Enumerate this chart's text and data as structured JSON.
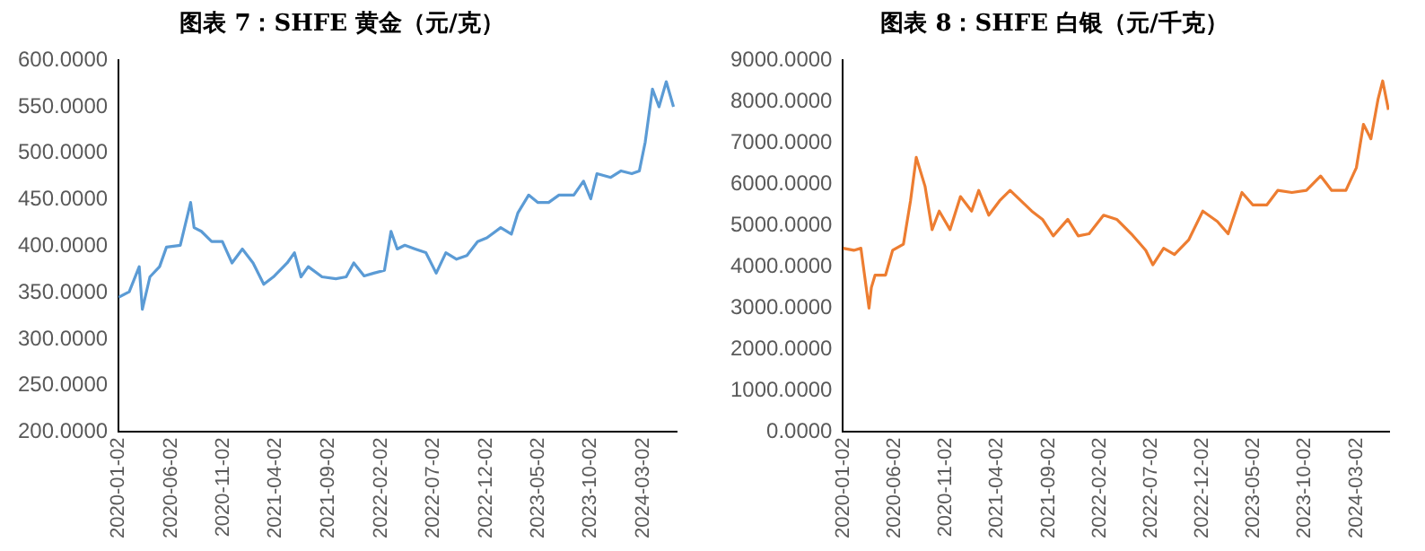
{
  "chart_data": [
    {
      "type": "line",
      "title": "图表 7：SHFE 黄金（元/克）",
      "grid": false,
      "legend": false,
      "marker": "none",
      "line_style": "solid",
      "xlim": [
        "2020-01-02",
        "2024-06-07"
      ],
      "xticks": [
        "2020-01-02",
        "2020-06-02",
        "2020-11-02",
        "2021-04-02",
        "2021-09-02",
        "2022-02-02",
        "2022-07-02",
        "2022-12-02",
        "2023-05-02",
        "2023-10-02",
        "2024-03-02"
      ],
      "ylim": [
        200,
        600
      ],
      "yticks": [
        {
          "value": 200,
          "label": "200.0000"
        },
        {
          "value": 250,
          "label": "250.0000"
        },
        {
          "value": 300,
          "label": "300.0000"
        },
        {
          "value": 350,
          "label": "350.0000"
        },
        {
          "value": 400,
          "label": "400.0000"
        },
        {
          "value": 450,
          "label": "450.0000"
        },
        {
          "value": 500,
          "label": "500.0000"
        },
        {
          "value": 550,
          "label": "550.0000"
        },
        {
          "value": 600,
          "label": "600.0000"
        }
      ],
      "x": [
        "2020-01-02",
        "2020-02-02",
        "2020-03-02",
        "2020-03-11",
        "2020-04-02",
        "2020-04-30",
        "2020-05-20",
        "2020-06-29",
        "2020-07-29",
        "2020-08-08",
        "2020-08-29",
        "2020-09-28",
        "2020-10-29",
        "2020-11-26",
        "2020-12-26",
        "2021-01-26",
        "2021-02-26",
        "2021-03-26",
        "2021-05-05",
        "2021-05-26",
        "2021-06-14",
        "2021-07-05",
        "2021-08-14",
        "2021-09-23",
        "2021-10-23",
        "2021-11-14",
        "2021-12-14",
        "2022-01-11",
        "2022-02-11",
        "2022-03-02",
        "2022-03-20",
        "2022-04-11",
        "2022-05-11",
        "2022-06-11",
        "2022-07-11",
        "2022-08-08",
        "2022-09-08",
        "2022-10-08",
        "2022-11-08",
        "2022-12-05",
        "2023-01-14",
        "2023-02-14",
        "2023-03-05",
        "2023-04-05",
        "2023-05-02",
        "2023-06-02",
        "2023-07-02",
        "2023-08-14",
        "2023-09-11",
        "2023-10-02",
        "2023-10-20",
        "2023-11-29",
        "2023-12-29",
        "2024-01-29",
        "2024-02-20",
        "2024-03-08",
        "2024-03-29",
        "2024-04-17",
        "2024-05-08",
        "2024-05-29"
      ],
      "series": [
        {
          "color": "#5b9bd5",
          "values": [
            345,
            351,
            378,
            332,
            367,
            378,
            399,
            401,
            447,
            420,
            416,
            405,
            405,
            382,
            397,
            382,
            359,
            367,
            382,
            393,
            367,
            378,
            367,
            365,
            367,
            382,
            368,
            371,
            374,
            416,
            397,
            401,
            397,
            393,
            371,
            393,
            386,
            390,
            405,
            409,
            420,
            413,
            436,
            455,
            447,
            447,
            455,
            455,
            470,
            451,
            478,
            474,
            481,
            478,
            481,
            512,
            569,
            550,
            577,
            550
          ]
        }
      ]
    },
    {
      "type": "line",
      "title": "图表 8：SHFE 白银（元/千克）",
      "grid": false,
      "legend": false,
      "marker": "none",
      "line_style": "solid",
      "xlim": [
        "2020-01-02",
        "2024-06-07"
      ],
      "xticks": [
        "2020-01-02",
        "2020-06-02",
        "2020-11-02",
        "2021-04-02",
        "2021-09-02",
        "2022-02-02",
        "2022-07-02",
        "2022-12-02",
        "2023-05-02",
        "2023-10-02",
        "2024-03-02"
      ],
      "ylim": [
        0,
        9000
      ],
      "yticks": [
        {
          "value": 0,
          "label": "0.0000"
        },
        {
          "value": 1000,
          "label": "1000.0000"
        },
        {
          "value": 2000,
          "label": "2000.0000"
        },
        {
          "value": 3000,
          "label": "3000.0000"
        },
        {
          "value": 4000,
          "label": "4000.0000"
        },
        {
          "value": 5000,
          "label": "5000.0000"
        },
        {
          "value": 6000,
          "label": "6000.0000"
        },
        {
          "value": 7000,
          "label": "7000.0000"
        },
        {
          "value": 8000,
          "label": "8000.0000"
        },
        {
          "value": 9000,
          "label": "9000.0000"
        }
      ],
      "x": [
        "2020-01-02",
        "2020-02-03",
        "2020-02-24",
        "2020-03-19",
        "2020-03-26",
        "2020-04-06",
        "2020-05-07",
        "2020-05-28",
        "2020-06-29",
        "2020-07-20",
        "2020-08-06",
        "2020-09-01",
        "2020-09-22",
        "2020-10-13",
        "2020-11-14",
        "2020-12-15",
        "2021-01-17",
        "2021-02-07",
        "2021-03-09",
        "2021-04-10",
        "2021-05-11",
        "2021-06-12",
        "2021-07-14",
        "2021-08-15",
        "2021-09-16",
        "2021-10-29",
        "2021-11-29",
        "2021-12-31",
        "2022-02-12",
        "2022-03-23",
        "2022-05-05",
        "2022-06-17",
        "2022-07-08",
        "2022-08-09",
        "2022-09-10",
        "2022-10-22",
        "2022-12-03",
        "2023-01-15",
        "2023-02-16",
        "2023-03-29",
        "2023-04-30",
        "2023-06-11",
        "2023-07-13",
        "2023-08-24",
        "2023-10-06",
        "2023-11-17",
        "2023-12-20",
        "2024-01-31",
        "2024-03-02",
        "2024-03-23",
        "2024-04-14",
        "2024-05-05",
        "2024-05-19",
        "2024-06-05"
      ],
      "series": [
        {
          "color": "#ed7d31",
          "values": [
            4450,
            4400,
            4450,
            3000,
            3500,
            3800,
            3800,
            4400,
            4550,
            5600,
            6650,
            5950,
            4900,
            5350,
            4900,
            5700,
            5350,
            5850,
            5250,
            5600,
            5850,
            5600,
            5350,
            5150,
            4750,
            5150,
            4750,
            4800,
            5250,
            5150,
            4800,
            4400,
            4050,
            4450,
            4300,
            4650,
            5350,
            5100,
            4800,
            5800,
            5500,
            5500,
            5850,
            5800,
            5850,
            6200,
            5850,
            5850,
            6400,
            7450,
            7100,
            8050,
            8500,
            7800
          ]
        }
      ]
    }
  ]
}
